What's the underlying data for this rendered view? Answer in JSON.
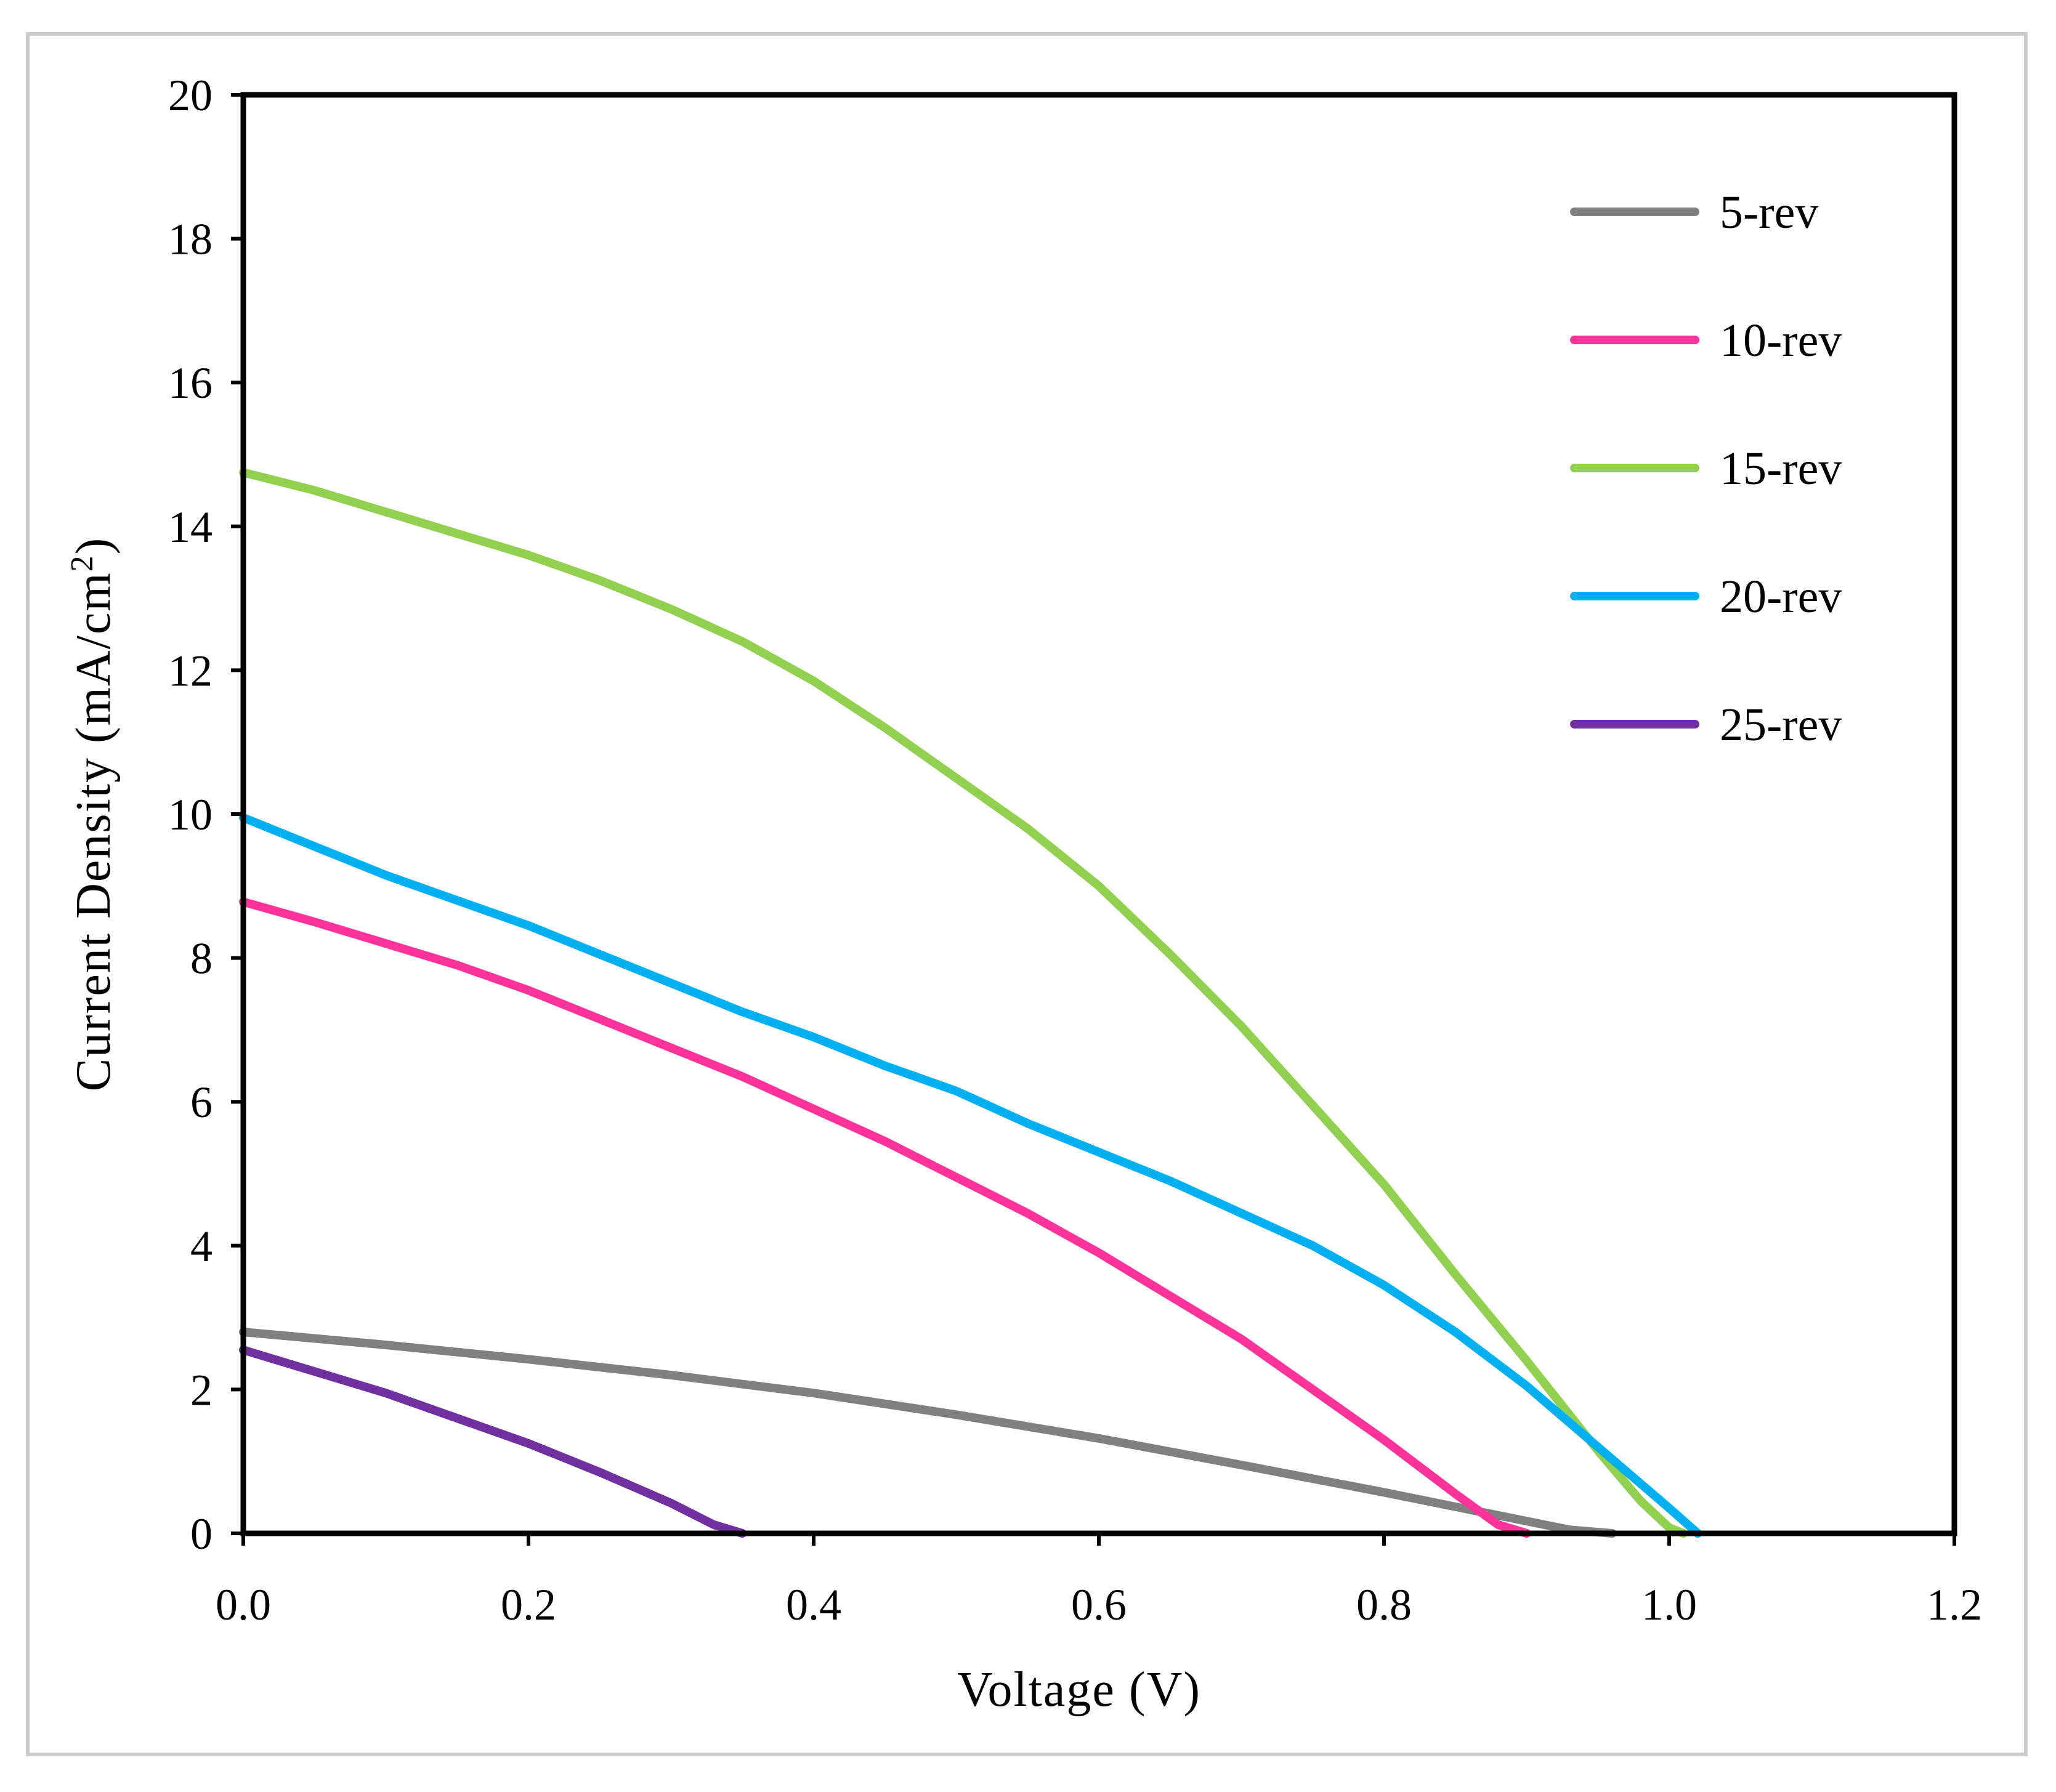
{
  "chart_data": {
    "type": "line",
    "title": "",
    "xlabel": "Voltage (V)",
    "ylabel_main": "Current Density (mA/cm",
    "ylabel_sup": "2",
    "ylabel_close": ")",
    "xlim": [
      0,
      1.2
    ],
    "ylim": [
      0,
      20
    ],
    "xticks": [
      0,
      0.2,
      0.4,
      0.6,
      0.8,
      1.0,
      1.2
    ],
    "xtick_labels": [
      "0.0",
      "0.2",
      "0.4",
      "0.6",
      "0.8",
      "1.0",
      "1.2"
    ],
    "yticks": [
      0,
      2,
      4,
      6,
      8,
      10,
      12,
      14,
      16,
      18,
      20
    ],
    "ytick_labels": [
      "0",
      "2",
      "4",
      "6",
      "8",
      "10",
      "12",
      "14",
      "16",
      "18",
      "20"
    ],
    "grid": false,
    "legend_position": "top-right",
    "series": [
      {
        "name": "5-rev",
        "color": "#808080",
        "x": [
          0,
          0.1,
          0.2,
          0.3,
          0.4,
          0.5,
          0.6,
          0.7,
          0.8,
          0.85,
          0.9,
          0.93,
          0.96
        ],
        "y": [
          2.8,
          2.62,
          2.42,
          2.2,
          1.95,
          1.65,
          1.32,
          0.95,
          0.57,
          0.37,
          0.17,
          0.05,
          0
        ]
      },
      {
        "name": "10-rev",
        "color": "#ff3399",
        "x": [
          0,
          0.05,
          0.1,
          0.15,
          0.2,
          0.25,
          0.3,
          0.35,
          0.4,
          0.45,
          0.5,
          0.55,
          0.6,
          0.65,
          0.7,
          0.75,
          0.8,
          0.85,
          0.88,
          0.9
        ],
        "y": [
          8.78,
          8.5,
          8.2,
          7.9,
          7.55,
          7.15,
          6.75,
          6.35,
          5.9,
          5.45,
          4.95,
          4.45,
          3.9,
          3.3,
          2.7,
          2.0,
          1.3,
          0.55,
          0.12,
          0
        ]
      },
      {
        "name": "15-rev",
        "color": "#92d050",
        "x": [
          0,
          0.05,
          0.1,
          0.15,
          0.2,
          0.25,
          0.3,
          0.35,
          0.4,
          0.45,
          0.5,
          0.55,
          0.6,
          0.65,
          0.7,
          0.75,
          0.8,
          0.85,
          0.9,
          0.95,
          0.98,
          1.0,
          1.01
        ],
        "y": [
          14.75,
          14.5,
          14.2,
          13.9,
          13.6,
          13.25,
          12.85,
          12.4,
          11.85,
          11.2,
          10.5,
          9.8,
          9.0,
          8.05,
          7.05,
          5.95,
          4.85,
          3.6,
          2.4,
          1.15,
          0.45,
          0.08,
          0
        ]
      },
      {
        "name": "20-rev",
        "color": "#00b0f0",
        "x": [
          0,
          0.05,
          0.1,
          0.15,
          0.2,
          0.25,
          0.3,
          0.35,
          0.4,
          0.45,
          0.5,
          0.55,
          0.6,
          0.65,
          0.7,
          0.75,
          0.8,
          0.85,
          0.9,
          0.95,
          1.0,
          1.02
        ],
        "y": [
          9.95,
          9.55,
          9.15,
          8.8,
          8.45,
          8.05,
          7.65,
          7.25,
          6.9,
          6.5,
          6.15,
          5.7,
          5.3,
          4.9,
          4.45,
          4.0,
          3.45,
          2.8,
          2.05,
          1.2,
          0.35,
          0
        ]
      },
      {
        "name": "25-rev",
        "color": "#7030a0",
        "x": [
          0,
          0.05,
          0.1,
          0.15,
          0.2,
          0.25,
          0.3,
          0.33,
          0.35
        ],
        "y": [
          2.55,
          2.25,
          1.95,
          1.6,
          1.25,
          0.85,
          0.42,
          0.12,
          0
        ]
      }
    ]
  }
}
